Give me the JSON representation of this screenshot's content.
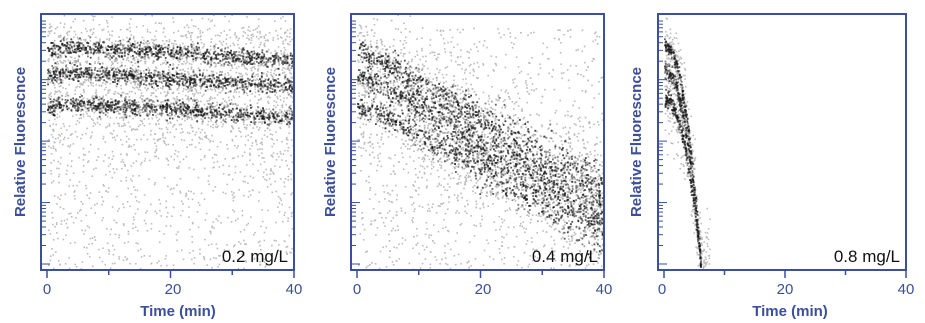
{
  "colors": {
    "axis": "#3b4f9c",
    "band_dark": "#1a1a1a",
    "cloud_gray": "#bdbdbd",
    "label_text": "#111111"
  },
  "chart_data": [
    {
      "type": "scatter",
      "panel_label": "0.2 mg/L",
      "xlabel": "Time (min)",
      "ylabel": "Relative Fluorescnce",
      "xlim": [
        0,
        40
      ],
      "x_ticks": [
        "0",
        "20",
        "40"
      ],
      "y_scale": "log",
      "y_decades": 4,
      "description_bands": [
        {
          "name": "",
          "level": 0.88,
          "trend": "slight decline",
          "end_level": 0.82
        },
        {
          "name": "",
          "level": 0.78,
          "trend": "slight decline",
          "end_level": 0.72
        },
        {
          "name": "",
          "level": 0.66,
          "trend": "slight decline",
          "end_level": 0.6
        }
      ],
      "background": "dense"
    },
    {
      "type": "scatter",
      "panel_label": "0.4 mg/L",
      "xlabel": "",
      "ylabel": "Relative Fluorescnce",
      "xlim": [
        0,
        40
      ],
      "x_ticks": [
        "0",
        "20",
        "40"
      ],
      "y_scale": "log",
      "y_decades": 4,
      "description_bands": [
        {
          "name": "",
          "level": 0.88,
          "trend": "steady decline",
          "end_level": 0.3
        },
        {
          "name": "",
          "level": 0.78,
          "trend": "steady decline",
          "end_level": 0.22
        },
        {
          "name": "",
          "level": 0.66,
          "trend": "steady decline",
          "end_level": 0.15
        }
      ],
      "background": "dense"
    },
    {
      "type": "scatter",
      "panel_label": "0.8 mg/L",
      "xlabel": "Time (min)",
      "ylabel": "Relative Fluorescnce",
      "xlim": [
        0,
        40
      ],
      "x_ticks": [
        "0",
        "20",
        "40"
      ],
      "y_scale": "log",
      "y_decades": 4,
      "description_bands": [
        {
          "name": "",
          "level": 0.88,
          "trend": "rapid collapse",
          "end_level": 0.02
        },
        {
          "name": "",
          "level": 0.78,
          "trend": "rapid collapse",
          "end_level": 0.02
        },
        {
          "name": "",
          "level": 0.66,
          "trend": "rapid collapse",
          "end_level": 0.02
        }
      ],
      "collapse_time": 6,
      "background": "sparse"
    }
  ]
}
